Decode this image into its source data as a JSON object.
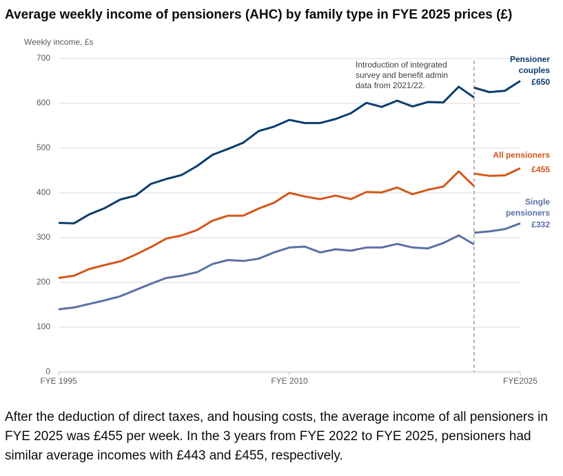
{
  "chart_data": {
    "type": "line",
    "title": "Average weekly income of pensioners (AHC) by family type in FYE 2025 prices (£)",
    "y_label": "Weekly income, £s",
    "x": [
      1995,
      1996,
      1997,
      1998,
      1999,
      2000,
      2001,
      2002,
      2003,
      2004,
      2005,
      2006,
      2007,
      2008,
      2009,
      2010,
      2011,
      2012,
      2013,
      2014,
      2015,
      2016,
      2017,
      2018,
      2019,
      2020,
      2021,
      2022,
      2022,
      2022,
      2023,
      2024,
      2025
    ],
    "xlim": [
      1995,
      2025
    ],
    "xticks": [
      {
        "value": 1995,
        "label": "FYE 1995"
      },
      {
        "value": 2010,
        "label": "FYE 2010"
      },
      {
        "value": 2025,
        "label": "FYE2025"
      }
    ],
    "ylim": [
      0,
      700
    ],
    "yticks": [
      0,
      100,
      200,
      300,
      400,
      500,
      600,
      700
    ],
    "grid": true,
    "series": [
      {
        "name": "Pensioner couples",
        "color": "#0b3c6e",
        "values": [
          333,
          332,
          352,
          366,
          385,
          394,
          420,
          431,
          440,
          460,
          485,
          498,
          512,
          538,
          548,
          563,
          556,
          556,
          565,
          578,
          601,
          592,
          606,
          593,
          603,
          602,
          637,
          613,
          null,
          635,
          625,
          628,
          650
        ],
        "value_labels": [
          null,
          null,
          null,
          null,
          null,
          null,
          null,
          null,
          null,
          null,
          null,
          null,
          null,
          null,
          null,
          null,
          null,
          null,
          null,
          null,
          null,
          null,
          null,
          null,
          null,
          null,
          null,
          null,
          null,
          null,
          null,
          null,
          "£650"
        ]
      },
      {
        "name": "All pensioners",
        "color": "#d4561a",
        "values": [
          210,
          215,
          230,
          239,
          247,
          262,
          279,
          298,
          305,
          317,
          338,
          349,
          349,
          365,
          378,
          400,
          392,
          386,
          394,
          386,
          402,
          401,
          412,
          397,
          407,
          414,
          448,
          415,
          null,
          443,
          438,
          439,
          455
        ],
        "value_labels": [
          null,
          null,
          null,
          null,
          null,
          null,
          null,
          null,
          null,
          null,
          null,
          null,
          null,
          null,
          null,
          null,
          null,
          null,
          null,
          null,
          null,
          null,
          null,
          null,
          null,
          null,
          null,
          null,
          null,
          null,
          null,
          null,
          "£455"
        ]
      },
      {
        "name": "Single pensioners",
        "color": "#5b6fa8",
        "values": [
          140,
          144,
          152,
          160,
          169,
          183,
          197,
          210,
          215,
          223,
          241,
          250,
          248,
          253,
          267,
          278,
          280,
          267,
          274,
          271,
          278,
          278,
          286,
          278,
          276,
          288,
          305,
          285,
          null,
          311,
          314,
          319,
          332
        ],
        "value_labels": [
          null,
          null,
          null,
          null,
          null,
          null,
          null,
          null,
          null,
          null,
          null,
          null,
          null,
          null,
          null,
          null,
          null,
          null,
          null,
          null,
          null,
          null,
          null,
          null,
          null,
          null,
          null,
          null,
          null,
          null,
          null,
          null,
          "£332"
        ]
      }
    ],
    "annotation": {
      "x": 2022,
      "lines": [
        "Introduction of integrated",
        "survey and benefit admin",
        "data from 2021/22."
      ]
    }
  },
  "paragraph": "After the deduction of direct taxes, and housing costs, the average income of all pensioners in FYE 2025 was £455 per week. In the 3 years from FYE 2022 to FYE 2025, pensioners had similar average incomes with £443 and £455, respectively."
}
